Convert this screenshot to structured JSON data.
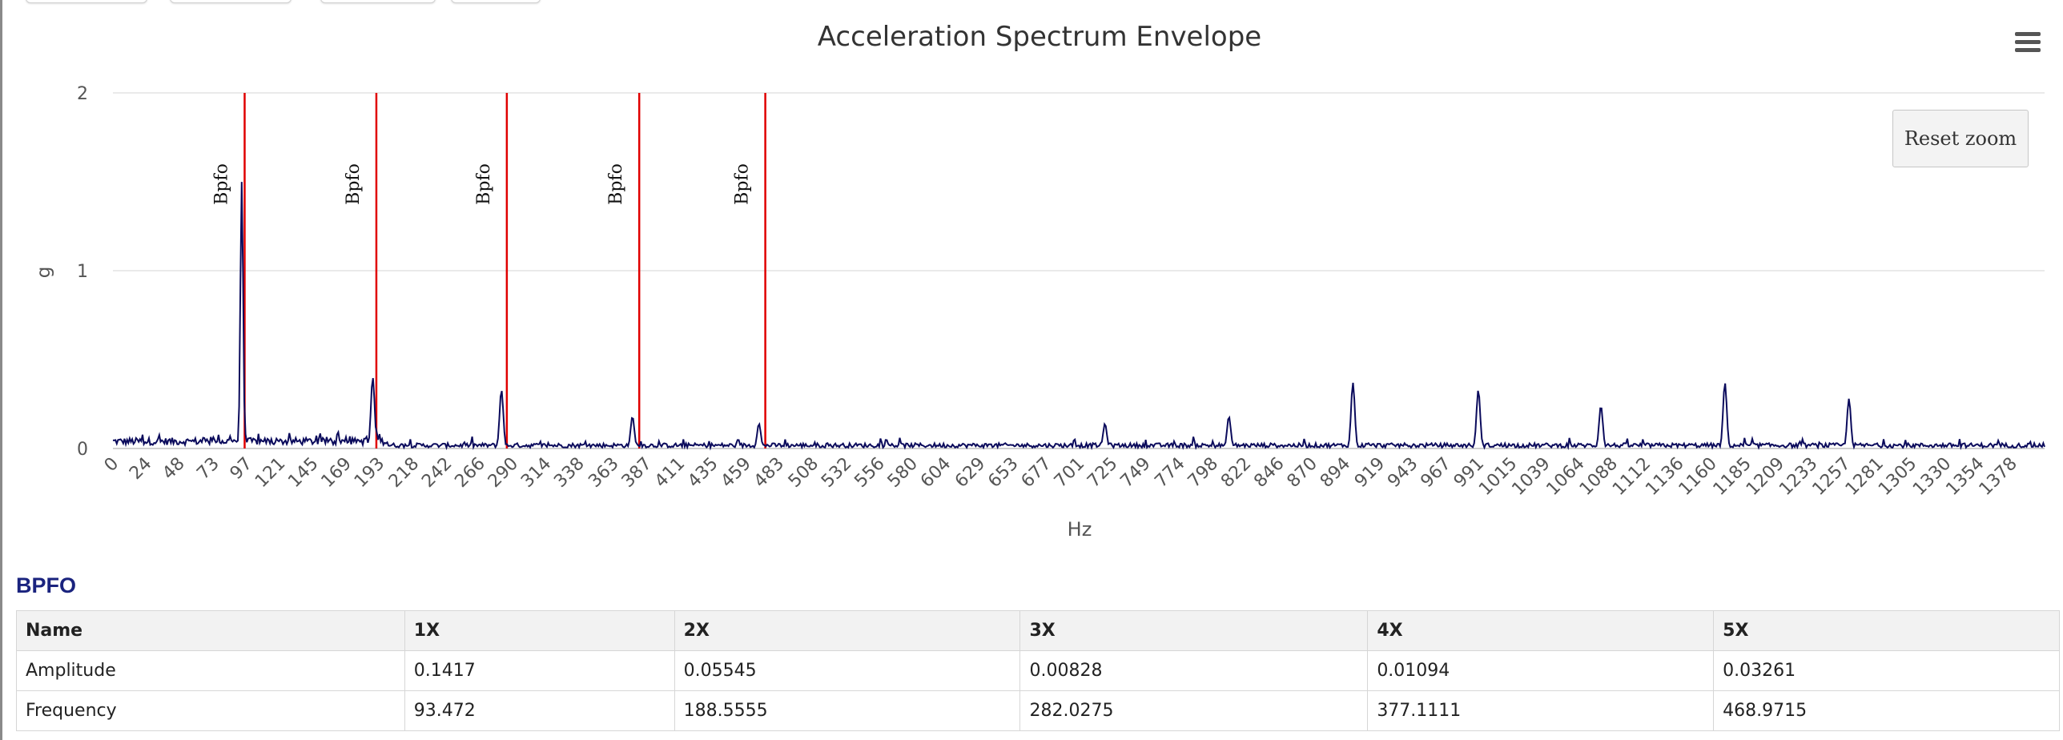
{
  "chart_data": {
    "type": "line",
    "title": "Acceleration Spectrum Envelope",
    "xlabel": "Hz",
    "ylabel": "g",
    "ylim": [
      0,
      2
    ],
    "y_ticks": [
      "0",
      "1",
      "2"
    ],
    "x_range": [
      0,
      1402
    ],
    "x_tick_labels": [
      "0",
      "24",
      "48",
      "73",
      "97",
      "121",
      "145",
      "169",
      "193",
      "218",
      "242",
      "266",
      "290",
      "314",
      "338",
      "363",
      "387",
      "411",
      "435",
      "459",
      "483",
      "508",
      "532",
      "556",
      "580",
      "604",
      "629",
      "653",
      "677",
      "701",
      "725",
      "749",
      "774",
      "798",
      "822",
      "846",
      "870",
      "894",
      "919",
      "943",
      "967",
      "991",
      "1015",
      "1039",
      "1064",
      "1088",
      "1112",
      "1136",
      "1160",
      "1185",
      "1209",
      "1233",
      "1257",
      "1281",
      "1305",
      "1330",
      "1354",
      "1378"
    ],
    "grid": true,
    "series": [
      {
        "color": "#0b0b5c",
        "peaks": [
          {
            "x": 93.5,
            "y": 1.5
          },
          {
            "x": 188.6,
            "y": 0.4
          },
          {
            "x": 282.0,
            "y": 0.33
          },
          {
            "x": 377.1,
            "y": 0.18
          },
          {
            "x": 468.9,
            "y": 0.14
          },
          {
            "x": 720,
            "y": 0.14
          },
          {
            "x": 810,
            "y": 0.18
          },
          {
            "x": 900,
            "y": 0.37
          },
          {
            "x": 991,
            "y": 0.33
          },
          {
            "x": 1080,
            "y": 0.24
          },
          {
            "x": 1170,
            "y": 0.37
          },
          {
            "x": 1260,
            "y": 0.28
          }
        ]
      }
    ],
    "markers": [
      {
        "label": "Bpfo",
        "x": 95.6,
        "color": "#e00000"
      },
      {
        "label": "Bpfo",
        "x": 191.2,
        "color": "#e00000"
      },
      {
        "label": "Bpfo",
        "x": 285.9,
        "color": "#e00000"
      },
      {
        "label": "Bpfo",
        "x": 382.0,
        "color": "#e00000"
      },
      {
        "label": "Bpfo",
        "x": 473.5,
        "color": "#e00000"
      }
    ]
  },
  "toolbar": {
    "reset_zoom_label": "Reset zoom",
    "menu_icon": "hamburger-menu-icon"
  },
  "table": {
    "title": "BPFO",
    "headers": [
      "Name",
      "1X",
      "2X",
      "3X",
      "4X",
      "5X"
    ],
    "rows": [
      [
        "Amplitude",
        "0.1417",
        "0.05545",
        "0.00828",
        "0.01094",
        "0.03261"
      ],
      [
        "Frequency",
        "93.472",
        "188.5555",
        "282.0275",
        "377.1111",
        "468.9715"
      ]
    ]
  }
}
